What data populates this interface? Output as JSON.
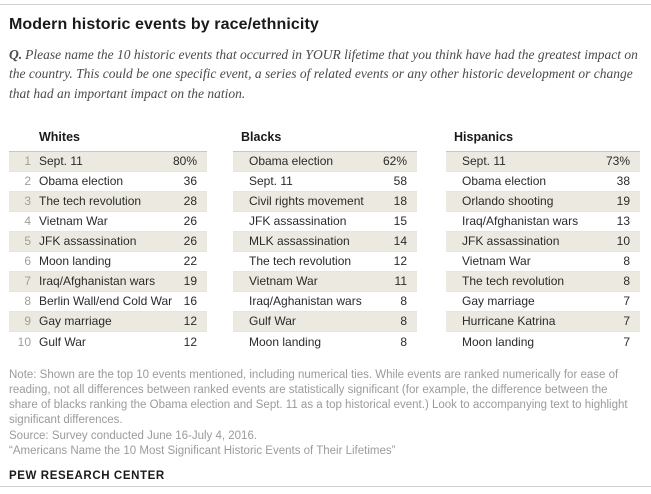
{
  "header": {
    "title": "Modern historic events by race/ethnicity",
    "question_prefix": "Q.",
    "question": "Please name the 10 historic events that occurred in YOUR lifetime that you think have had the greatest impact on the country. This could be one specific event, a series of related events or any other historic development or change that had an important impact on the nation."
  },
  "chart_data": {
    "type": "table",
    "title": "Modern historic events by race/ethnicity",
    "unit": "%",
    "groups": [
      {
        "name": "Whites",
        "ranked": true,
        "events": [
          "Sept. 11",
          "Obama election",
          "The tech revolution",
          "Vietnam War",
          "JFK assassination",
          "Moon landing",
          "Iraq/Afghanistan wars",
          "Berlin Wall/end Cold War",
          "Gay marriage",
          "Gulf War"
        ],
        "values": [
          80,
          36,
          28,
          26,
          26,
          22,
          19,
          16,
          12,
          12
        ]
      },
      {
        "name": "Blacks",
        "ranked": false,
        "events": [
          "Obama election",
          "Sept. 11",
          "Civil rights movement",
          "JFK assassination",
          "MLK assassination",
          "The tech revolution",
          "Vietnam War",
          "Iraq/Aghanistan wars",
          "Gulf War",
          "Moon landing"
        ],
        "values": [
          62,
          58,
          18,
          15,
          14,
          12,
          11,
          8,
          8,
          8
        ]
      },
      {
        "name": "Hispanics",
        "ranked": false,
        "events": [
          "Sept. 11",
          "Obama election",
          "Orlando shooting",
          "Iraq/Afghanistan wars",
          "JFK assassination",
          "Vietnam War",
          "The tech revolution",
          "Gay marriage",
          "Hurricane Katrina",
          "Moon landing"
        ],
        "values": [
          73,
          38,
          19,
          13,
          10,
          8,
          8,
          7,
          7,
          7
        ]
      }
    ]
  },
  "tables": [
    {
      "group": "Whites",
      "show_rank": true,
      "rows": [
        {
          "rank": "1",
          "event": "Sept. 11",
          "value": "80%"
        },
        {
          "rank": "2",
          "event": "Obama election",
          "value": "36"
        },
        {
          "rank": "3",
          "event": "The tech revolution",
          "value": "28"
        },
        {
          "rank": "4",
          "event": "Vietnam War",
          "value": "26"
        },
        {
          "rank": "5",
          "event": "JFK assassination",
          "value": "26"
        },
        {
          "rank": "6",
          "event": "Moon landing",
          "value": "22"
        },
        {
          "rank": "7",
          "event": "Iraq/Afghanistan wars",
          "value": "19"
        },
        {
          "rank": "8",
          "event": "Berlin Wall/end Cold War",
          "value": "16"
        },
        {
          "rank": "9",
          "event": "Gay marriage",
          "value": "12"
        },
        {
          "rank": "10",
          "event": "Gulf War",
          "value": "12"
        }
      ]
    },
    {
      "group": "Blacks",
      "show_rank": false,
      "rows": [
        {
          "event": "Obama election",
          "value": "62%"
        },
        {
          "event": "Sept. 11",
          "value": "58"
        },
        {
          "event": "Civil rights movement",
          "value": "18"
        },
        {
          "event": "JFK assassination",
          "value": "15"
        },
        {
          "event": "MLK assassination",
          "value": "14"
        },
        {
          "event": "The tech revolution",
          "value": "12"
        },
        {
          "event": "Vietnam War",
          "value": "11"
        },
        {
          "event": "Iraq/Aghanistan wars",
          "value": "8"
        },
        {
          "event": "Gulf War",
          "value": "8"
        },
        {
          "event": "Moon landing",
          "value": "8"
        }
      ]
    },
    {
      "group": "Hispanics",
      "show_rank": false,
      "rows": [
        {
          "event": "Sept. 11",
          "value": "73%"
        },
        {
          "event": "Obama election",
          "value": "38"
        },
        {
          "event": "Orlando shooting",
          "value": "19"
        },
        {
          "event": "Iraq/Afghanistan wars",
          "value": "13"
        },
        {
          "event": "JFK assassination",
          "value": "10"
        },
        {
          "event": "Vietnam War",
          "value": "8"
        },
        {
          "event": "The tech revolution",
          "value": "8"
        },
        {
          "event": "Gay marriage",
          "value": "7"
        },
        {
          "event": "Hurricane Katrina",
          "value": "7"
        },
        {
          "event": "Moon landing",
          "value": "7"
        }
      ]
    }
  ],
  "footer": {
    "note": "Note: Shown are the top 10 events mentioned, including numerical ties. While events are ranked numerically for ease of reading, not all differences between ranked events are statistically significant (for example, the difference between the share of blacks ranking the Obama election and Sept. 11 as a top historical event.) Look to accompanying text to highlight significant differences.",
    "source": "Source: Survey conducted June 16-July 4, 2016.",
    "report": "“Americans Name the 10 Most Significant Historic Events of Their Lifetimes”",
    "brand": "PEW RESEARCH CENTER"
  },
  "colors": {
    "row_shade": "#ECEAE0",
    "rule": "#CFCFCF",
    "note_gray": "#9B9B9B"
  }
}
